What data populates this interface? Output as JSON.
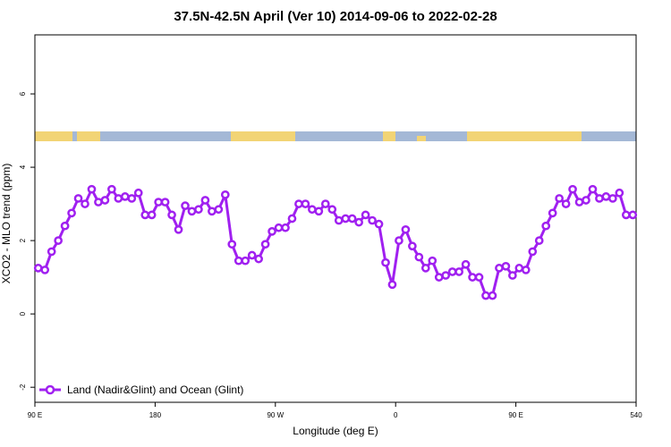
{
  "chart_data": {
    "type": "line",
    "title": "37.5N-42.5N April (Ver 10)   2014-09-06 to 2022-02-28",
    "x_label": "Longitude (deg E)",
    "y_label": "XCO2 - MLO trend (ppm)",
    "x": [
      92.5,
      97.5,
      102.5,
      107.5,
      112.5,
      117.5,
      122.5,
      127.5,
      132.5,
      137.5,
      142.5,
      147.5,
      152.5,
      157.5,
      162.5,
      167.5,
      172.5,
      177.5,
      182.5,
      187.5,
      192.5,
      197.5,
      202.5,
      207.5,
      212.5,
      217.5,
      222.5,
      227.5,
      232.5,
      237.5,
      242.5,
      247.5,
      252.5,
      257.5,
      262.5,
      267.5,
      272.5,
      277.5,
      282.5,
      287.5,
      292.5,
      297.5,
      302.5,
      307.5,
      312.5,
      317.5,
      322.5,
      327.5,
      332.5,
      337.5,
      342.5,
      347.5,
      352.5,
      357.5,
      362.5,
      367.5,
      372.5,
      377.5,
      382.5,
      387.5,
      392.5,
      397.5,
      402.5,
      407.5,
      412.5,
      417.5,
      422.5,
      427.5,
      432.5,
      437.5,
      442.5,
      447.5,
      452.5,
      457.5,
      462.5,
      467.5,
      472.5,
      477.5,
      482.5,
      487.5,
      492.5,
      497.5,
      502.5,
      507.5,
      512.5,
      517.5,
      522.5,
      527.5,
      532.5,
      537.5
    ],
    "series": [
      {
        "name": "Land (Nadir&Glint) and Ocean (Glint)",
        "color": "#a020f0",
        "values": [
          1.25,
          1.2,
          1.7,
          2.0,
          2.4,
          2.75,
          3.15,
          3.0,
          3.4,
          3.05,
          3.1,
          3.4,
          3.15,
          3.2,
          3.15,
          3.3,
          2.7,
          2.7,
          3.05,
          3.05,
          2.7,
          2.3,
          2.95,
          2.8,
          2.85,
          3.1,
          2.8,
          2.85,
          3.25,
          1.9,
          1.45,
          1.45,
          1.6,
          1.5,
          1.9,
          2.25,
          2.35,
          2.35,
          2.6,
          3.0,
          3.0,
          2.85,
          2.8,
          3.0,
          2.85,
          2.55,
          2.6,
          2.6,
          2.5,
          2.7,
          2.55,
          2.45,
          1.4,
          0.8,
          2.0,
          2.3,
          1.85,
          1.55,
          1.25,
          1.45,
          1.0,
          1.05,
          1.15,
          1.15,
          1.35,
          1.0,
          1.0,
          0.5,
          0.5,
          1.25,
          1.3,
          1.05,
          1.25,
          1.2,
          1.7,
          2.0,
          2.4,
          2.75,
          3.15,
          3.0,
          3.4,
          3.05,
          3.1,
          3.4,
          3.15,
          3.2,
          3.15,
          3.3,
          2.7,
          2.7
        ]
      }
    ],
    "xlim": [
      90,
      540
    ],
    "xticks": [
      {
        "value": 90,
        "label": "90 E"
      },
      180,
      {
        "value": 270,
        "label": "90 W"
      },
      {
        "value": 360,
        "label": "0"
      },
      {
        "value": 450,
        "label": "90 E"
      },
      540
    ],
    "ylim": [
      -2.41,
      7.61
    ],
    "yticks": [
      -2,
      0,
      2,
      4,
      6
    ],
    "legend": "bottom-left"
  }
}
